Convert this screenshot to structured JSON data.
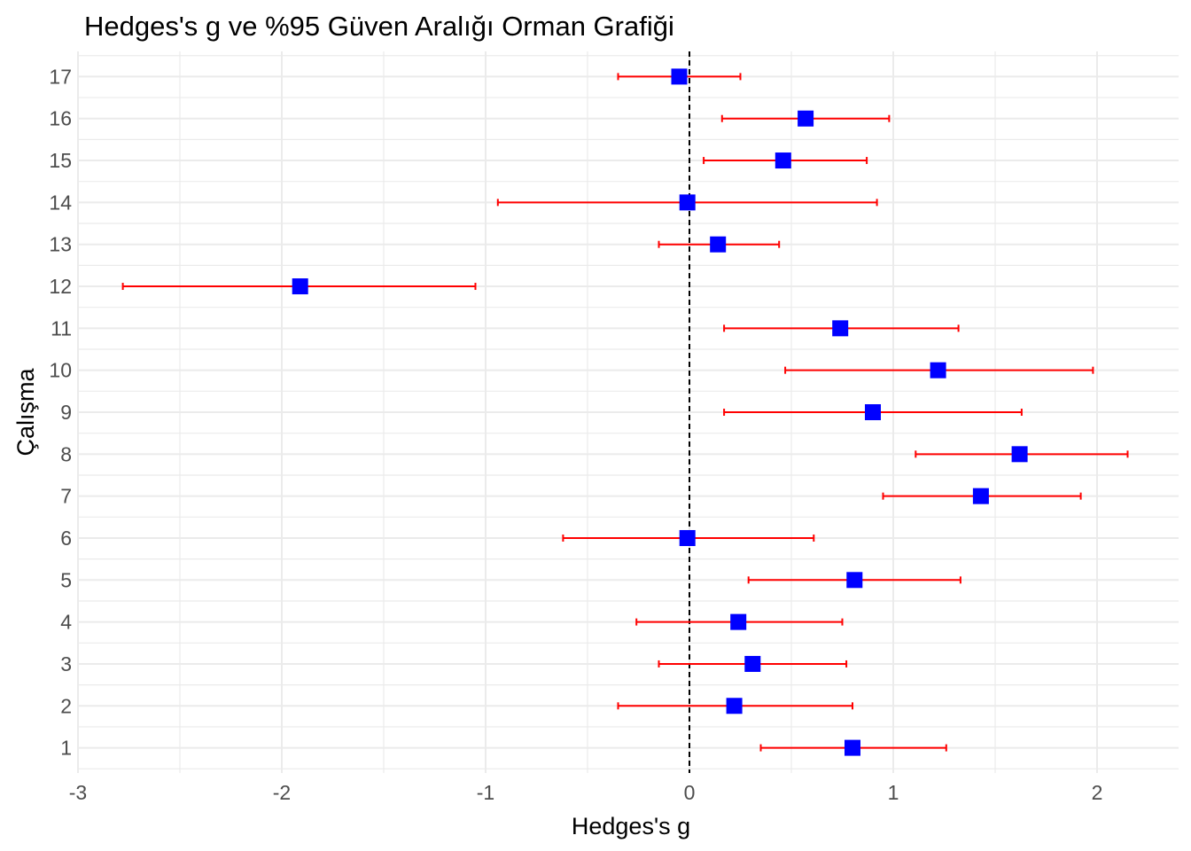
{
  "chart_data": {
    "type": "scatter",
    "subtype": "forest-plot",
    "title": "Hedges's g ve %95 Güven Aralığı Orman Grafiği",
    "xlabel": "Hedges's g",
    "ylabel": "Çalışma",
    "xlim": [
      -3.0,
      2.4
    ],
    "ylim": [
      0.4,
      17.6
    ],
    "x_ticks": [
      -3,
      -2,
      -1,
      0,
      1,
      2
    ],
    "x_tick_labels": [
      "-3",
      "-2",
      "-1",
      "0",
      "1",
      "2"
    ],
    "y_tick_labels": [
      "1",
      "2",
      "3",
      "4",
      "5",
      "6",
      "7",
      "8",
      "9",
      "10",
      "11",
      "12",
      "13",
      "14",
      "15",
      "16",
      "17"
    ],
    "reference_line": 0,
    "grid": true,
    "point_color": "#0000ff",
    "ci_color": "#ff0000",
    "reference_line_color": "#000000",
    "studies": [
      {
        "study": "1",
        "g": 0.8,
        "lower": 0.35,
        "upper": 1.26
      },
      {
        "study": "2",
        "g": 0.22,
        "lower": -0.35,
        "upper": 0.8
      },
      {
        "study": "3",
        "g": 0.31,
        "lower": -0.15,
        "upper": 0.77
      },
      {
        "study": "4",
        "g": 0.24,
        "lower": -0.26,
        "upper": 0.75
      },
      {
        "study": "5",
        "g": 0.81,
        "lower": 0.29,
        "upper": 1.33
      },
      {
        "study": "6",
        "g": -0.01,
        "lower": -0.62,
        "upper": 0.61
      },
      {
        "study": "7",
        "g": 1.43,
        "lower": 0.95,
        "upper": 1.92
      },
      {
        "study": "8",
        "g": 1.62,
        "lower": 1.11,
        "upper": 2.15
      },
      {
        "study": "9",
        "g": 0.9,
        "lower": 0.17,
        "upper": 1.63
      },
      {
        "study": "10",
        "g": 1.22,
        "lower": 0.47,
        "upper": 1.98
      },
      {
        "study": "11",
        "g": 0.74,
        "lower": 0.17,
        "upper": 1.32
      },
      {
        "study": "12",
        "g": -1.91,
        "lower": -2.78,
        "upper": -1.05
      },
      {
        "study": "13",
        "g": 0.14,
        "lower": -0.15,
        "upper": 0.44
      },
      {
        "study": "14",
        "g": -0.01,
        "lower": -0.94,
        "upper": 0.92
      },
      {
        "study": "15",
        "g": 0.46,
        "lower": 0.07,
        "upper": 0.87
      },
      {
        "study": "16",
        "g": 0.57,
        "lower": 0.16,
        "upper": 0.98
      },
      {
        "study": "17",
        "g": -0.05,
        "lower": -0.35,
        "upper": 0.25
      }
    ]
  }
}
